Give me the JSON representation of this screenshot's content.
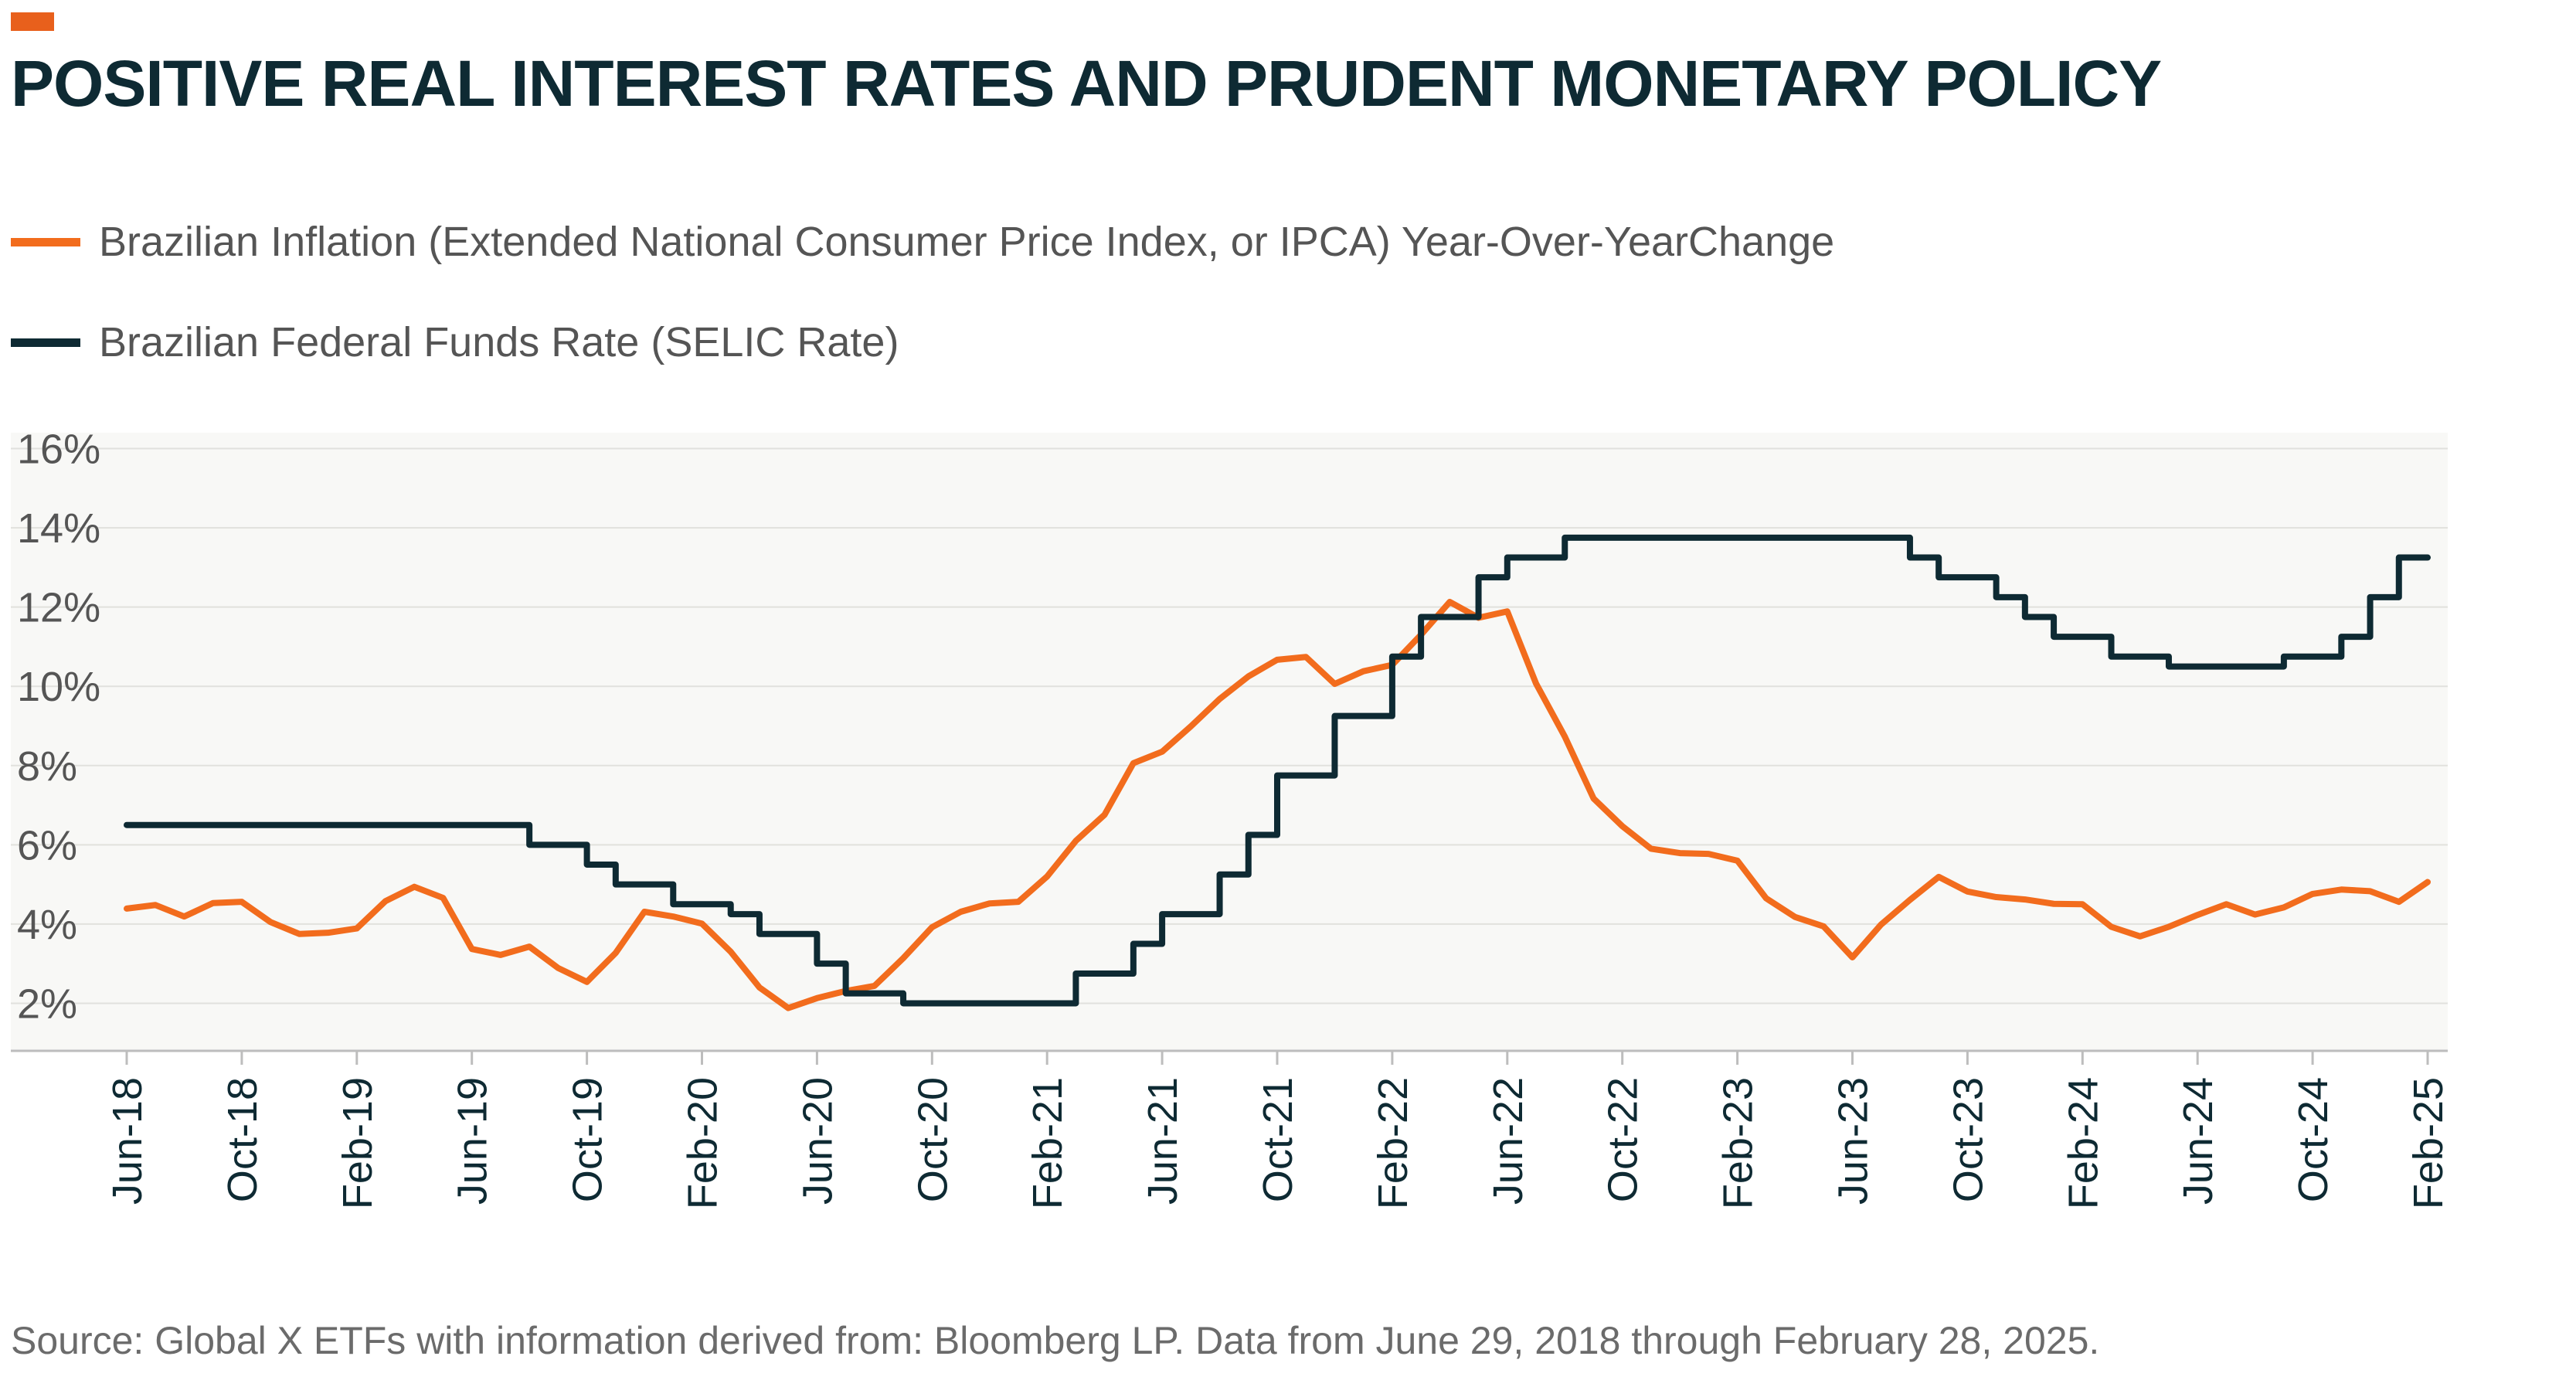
{
  "accent_color": "#E8601C",
  "title_color": "#0E2A33",
  "title": "POSITIVE REAL INTEREST RATES AND PRUDENT MONETARY POLICY",
  "legend": [
    {
      "label": "Brazilian Inflation (Extended National Consumer Price Index, or IPCA) Year-Over-YearChange",
      "color": "#F26C1D"
    },
    {
      "label": "Brazilian Federal Funds Rate (SELIC Rate)",
      "color": "#0E2A33"
    }
  ],
  "source": "Source: Global X ETFs with information derived from: Bloomberg LP. Data from June 29, 2018 through February 28, 2025.",
  "chart_data": {
    "type": "line",
    "title": "POSITIVE REAL INTEREST RATES AND PRUDENT MONETARY POLICY",
    "xlabel": "",
    "ylabel": "",
    "ylim": [
      0.8,
      16.4
    ],
    "yticks": [
      2,
      4,
      6,
      8,
      10,
      12,
      14,
      16
    ],
    "ytick_labels": [
      "2%",
      "4%",
      "6%",
      "8%",
      "10%",
      "12%",
      "14%",
      "16%"
    ],
    "xtick_labels": [
      "Jun-18",
      "Oct-18",
      "Feb-19",
      "Jun-19",
      "Oct-19",
      "Feb-20",
      "Jun-20",
      "Oct-20",
      "Feb-21",
      "Jun-21",
      "Oct-21",
      "Feb-22",
      "Jun-22",
      "Oct-22",
      "Feb-23",
      "Jun-23",
      "Oct-23",
      "Feb-24",
      "Jun-24",
      "Oct-24",
      "Feb-25"
    ],
    "grid": true,
    "legend_position": "top-left",
    "x": [
      "Jun-18",
      "Jul-18",
      "Aug-18",
      "Sep-18",
      "Oct-18",
      "Nov-18",
      "Dec-18",
      "Jan-19",
      "Feb-19",
      "Mar-19",
      "Apr-19",
      "May-19",
      "Jun-19",
      "Jul-19",
      "Aug-19",
      "Sep-19",
      "Oct-19",
      "Nov-19",
      "Dec-19",
      "Jan-20",
      "Feb-20",
      "Mar-20",
      "Apr-20",
      "May-20",
      "Jun-20",
      "Jul-20",
      "Aug-20",
      "Sep-20",
      "Oct-20",
      "Nov-20",
      "Dec-20",
      "Jan-21",
      "Feb-21",
      "Mar-21",
      "Apr-21",
      "May-21",
      "Jun-21",
      "Jul-21",
      "Aug-21",
      "Sep-21",
      "Oct-21",
      "Nov-21",
      "Dec-21",
      "Jan-22",
      "Feb-22",
      "Mar-22",
      "Apr-22",
      "May-22",
      "Jun-22",
      "Jul-22",
      "Aug-22",
      "Sep-22",
      "Oct-22",
      "Nov-22",
      "Dec-22",
      "Jan-23",
      "Feb-23",
      "Mar-23",
      "Apr-23",
      "May-23",
      "Jun-23",
      "Jul-23",
      "Aug-23",
      "Sep-23",
      "Oct-23",
      "Nov-23",
      "Dec-23",
      "Jan-24",
      "Feb-24",
      "Mar-24",
      "Apr-24",
      "May-24",
      "Jun-24",
      "Jul-24",
      "Aug-24",
      "Sep-24",
      "Oct-24",
      "Nov-24",
      "Dec-24",
      "Jan-25",
      "Feb-25"
    ],
    "series": [
      {
        "name": "Brazilian Inflation (Extended National Consumer Price Index, or IPCA) Year-Over-YearChange",
        "color": "#F26C1D",
        "values": [
          4.39,
          4.48,
          4.19,
          4.53,
          4.56,
          4.05,
          3.75,
          3.78,
          3.89,
          4.58,
          4.94,
          4.66,
          3.37,
          3.22,
          3.43,
          2.89,
          2.54,
          3.27,
          4.31,
          4.19,
          4.01,
          3.3,
          2.4,
          1.88,
          2.13,
          2.31,
          2.44,
          3.14,
          3.92,
          4.31,
          4.52,
          4.56,
          5.2,
          6.1,
          6.76,
          8.06,
          8.35,
          8.99,
          9.68,
          10.25,
          10.67,
          10.74,
          10.06,
          10.38,
          10.54,
          11.3,
          12.13,
          11.73,
          11.89,
          10.07,
          8.73,
          7.17,
          6.47,
          5.9,
          5.79,
          5.77,
          5.6,
          4.65,
          4.18,
          3.94,
          3.16,
          3.99,
          4.61,
          5.19,
          4.82,
          4.68,
          4.62,
          4.51,
          4.5,
          3.93,
          3.69,
          3.93,
          4.23,
          4.5,
          4.24,
          4.42,
          4.76,
          4.87,
          4.83,
          4.56,
          5.06
        ]
      },
      {
        "name": "Brazilian Federal Funds Rate (SELIC Rate)",
        "color": "#0E2A33",
        "values": [
          6.5,
          6.5,
          6.5,
          6.5,
          6.5,
          6.5,
          6.5,
          6.5,
          6.5,
          6.5,
          6.5,
          6.5,
          6.5,
          6.5,
          6.0,
          6.0,
          5.5,
          5.0,
          5.0,
          4.5,
          4.5,
          4.25,
          3.75,
          3.75,
          3.0,
          2.25,
          2.25,
          2.0,
          2.0,
          2.0,
          2.0,
          2.0,
          2.0,
          2.75,
          2.75,
          3.5,
          4.25,
          4.25,
          5.25,
          6.25,
          7.75,
          7.75,
          9.25,
          9.25,
          10.75,
          11.75,
          11.75,
          12.75,
          13.25,
          13.25,
          13.75,
          13.75,
          13.75,
          13.75,
          13.75,
          13.75,
          13.75,
          13.75,
          13.75,
          13.75,
          13.75,
          13.75,
          13.25,
          12.75,
          12.75,
          12.25,
          11.75,
          11.25,
          11.25,
          10.75,
          10.75,
          10.5,
          10.5,
          10.5,
          10.5,
          10.75,
          10.75,
          11.25,
          12.25,
          13.25,
          13.25
        ]
      }
    ]
  }
}
